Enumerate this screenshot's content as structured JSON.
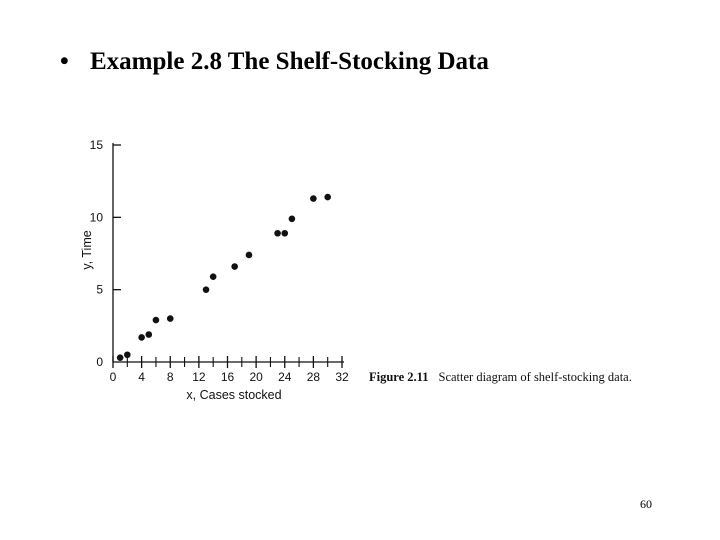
{
  "slide": {
    "bullet": "•",
    "title": "Example 2.8 The Shelf-Stocking Data",
    "page_number": "60"
  },
  "caption": {
    "label": "Figure 2.11",
    "text": "Scatter diagram of shelf-stocking data."
  },
  "chart_data": {
    "type": "scatter",
    "title": "",
    "xlabel": "x, Cases stocked",
    "ylabel": "y, Time",
    "xlim": [
      0,
      32
    ],
    "ylim": [
      0,
      15
    ],
    "x_ticks": [
      0,
      4,
      8,
      12,
      16,
      20,
      24,
      28,
      32
    ],
    "y_ticks": [
      0,
      5,
      10,
      15
    ],
    "grid": false,
    "legend": "none",
    "series": [
      {
        "points": [
          {
            "x": 1,
            "y": 0.3
          },
          {
            "x": 2,
            "y": 0.5
          },
          {
            "x": 4,
            "y": 1.7
          },
          {
            "x": 5,
            "y": 1.9
          },
          {
            "x": 6,
            "y": 2.9
          },
          {
            "x": 8,
            "y": 3.0
          },
          {
            "x": 13,
            "y": 5.0
          },
          {
            "x": 14,
            "y": 5.9
          },
          {
            "x": 17,
            "y": 6.6
          },
          {
            "x": 19,
            "y": 7.4
          },
          {
            "x": 23,
            "y": 8.9
          },
          {
            "x": 24,
            "y": 8.9
          },
          {
            "x": 25,
            "y": 9.9
          },
          {
            "x": 28,
            "y": 11.3
          },
          {
            "x": 30,
            "y": 11.4
          }
        ]
      }
    ],
    "colors": {
      "marker": "#111111",
      "axis": "#111111"
    }
  }
}
